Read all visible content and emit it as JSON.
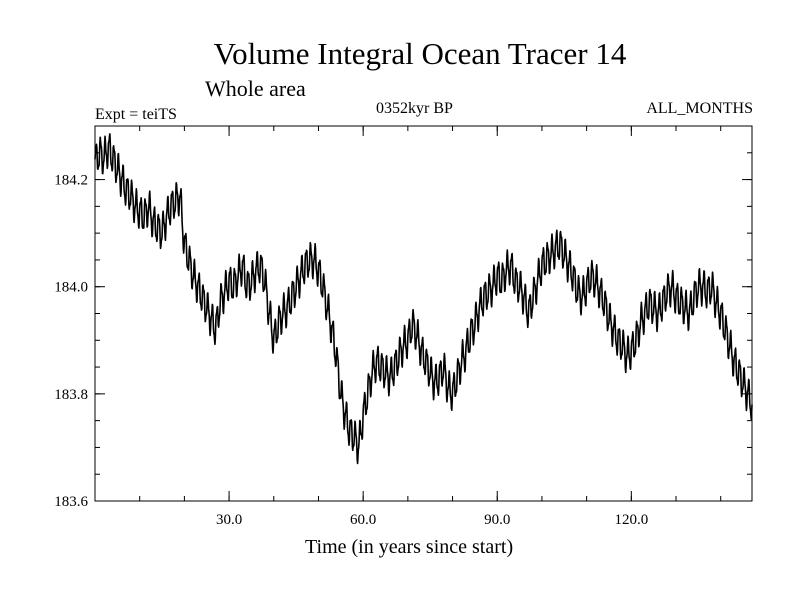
{
  "chart_data": {
    "type": "line",
    "title": "Volume Integral Ocean Tracer 14",
    "subtitle": "Whole area",
    "annotations": {
      "left": "Expt = teiTS",
      "center": "0352kyr BP",
      "right": "ALL_MONTHS"
    },
    "xlabel": "Time (in years since start)",
    "ylabel": "",
    "xlim": [
      0,
      147
    ],
    "ylim": [
      183.6,
      184.3
    ],
    "xticks": [
      30,
      60,
      90,
      120
    ],
    "xtick_labels": [
      "30.0",
      "60.0",
      "90.0",
      "120.0"
    ],
    "yticks": [
      183.6,
      183.8,
      184.0,
      184.2
    ],
    "ytick_labels": [
      "183.6",
      "183.8",
      "184.0",
      "184.2"
    ],
    "grid": false,
    "legend": "none",
    "line_color": "#000000",
    "series": [
      {
        "x": [
          0,
          1,
          2,
          3,
          4,
          5,
          6,
          7,
          8,
          9,
          10,
          11,
          12,
          13,
          14,
          15,
          16,
          17,
          18,
          19,
          20,
          21,
          22,
          23,
          24,
          25,
          26,
          27,
          28,
          29,
          30,
          31,
          32,
          33,
          34,
          35,
          36,
          37,
          38,
          39,
          40,
          41,
          42,
          43,
          44,
          45,
          46,
          47,
          48,
          49,
          50,
          51,
          52,
          53,
          54,
          55,
          56,
          57,
          58,
          59,
          60,
          61,
          62,
          63,
          64,
          65,
          66,
          67,
          68,
          69,
          70,
          71,
          72,
          73,
          74,
          75,
          76,
          77,
          78,
          79,
          80,
          81,
          82,
          83,
          84,
          85,
          86,
          87,
          88,
          89,
          90,
          91,
          92,
          93,
          94,
          95,
          96,
          97,
          98,
          99,
          100,
          101,
          102,
          103,
          104,
          105,
          106,
          107,
          108,
          109,
          110,
          111,
          112,
          113,
          114,
          115,
          116,
          117,
          118,
          119,
          120,
          121,
          122,
          123,
          124,
          125,
          126,
          127,
          128,
          129,
          130,
          131,
          132,
          133,
          134,
          135,
          136,
          137,
          138,
          139,
          140,
          141,
          142,
          143,
          144,
          145,
          146,
          147
        ],
        "values": [
          184.23,
          184.25,
          184.24,
          184.26,
          184.24,
          184.22,
          184.2,
          184.18,
          184.17,
          184.15,
          184.14,
          184.13,
          184.15,
          184.12,
          184.11,
          184.1,
          184.13,
          184.15,
          184.16,
          184.17,
          184.08,
          184.05,
          184.02,
          184,
          183.98,
          183.96,
          183.94,
          183.92,
          183.97,
          183.99,
          184.01,
          184,
          184.02,
          184.04,
          184,
          184.01,
          184.03,
          184.04,
          184.01,
          183.95,
          183.9,
          183.93,
          183.95,
          183.96,
          183.98,
          184,
          184.02,
          184.04,
          184.05,
          184.05,
          184.03,
          184,
          183.96,
          183.92,
          183.87,
          183.8,
          183.76,
          183.73,
          183.72,
          183.7,
          183.76,
          183.8,
          183.84,
          183.86,
          183.85,
          183.84,
          183.83,
          183.85,
          183.87,
          183.89,
          183.9,
          183.93,
          183.91,
          183.88,
          183.86,
          183.84,
          183.82,
          183.83,
          183.85,
          183.81,
          183.8,
          183.83,
          183.86,
          183.88,
          183.91,
          183.93,
          183.96,
          183.98,
          183.99,
          184,
          184.02,
          184.01,
          184.03,
          184.04,
          184.01,
          184,
          183.98,
          183.95,
          183.98,
          184.01,
          184.04,
          184.05,
          184.06,
          184.07,
          184.08,
          184.06,
          184.04,
          184.02,
          183.99,
          183.98,
          184,
          184.02,
          184.01,
          183.99,
          183.97,
          183.94,
          183.92,
          183.9,
          183.89,
          183.87,
          183.88,
          183.9,
          183.93,
          183.95,
          183.97,
          183.96,
          183.95,
          183.97,
          183.99,
          184,
          183.98,
          183.97,
          183.96,
          183.95,
          183.98,
          184,
          184,
          183.99,
          184,
          183.97,
          183.95,
          183.92,
          183.89,
          183.86,
          183.84,
          183.82,
          183.8,
          183.78
        ]
      }
    ]
  }
}
